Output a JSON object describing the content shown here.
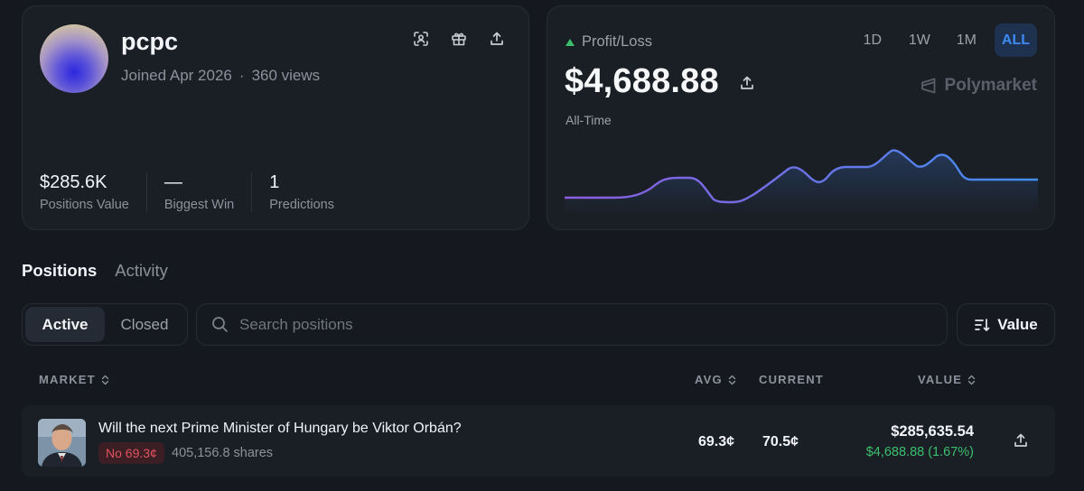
{
  "profile": {
    "username": "pcpc",
    "joined": "Joined Apr 2026",
    "separator": "·",
    "views": "360 views",
    "stats": [
      {
        "value": "$285.6K",
        "label": "Positions Value"
      },
      {
        "value": "—",
        "label": "Biggest Win"
      },
      {
        "value": "1",
        "label": "Predictions"
      }
    ]
  },
  "pnl": {
    "label": "Profit/Loss",
    "value": "$4,688.88",
    "period": "All-Time",
    "timeframes": [
      "1D",
      "1W",
      "1M",
      "ALL"
    ],
    "active_timeframe": "ALL",
    "brand": "Polymarket",
    "accent_color": "#3cbf6d"
  },
  "tabs": {
    "positions": "Positions",
    "activity": "Activity",
    "active": "Positions"
  },
  "filters": {
    "active_label": "Active",
    "closed_label": "Closed",
    "search_placeholder": "Search positions",
    "sort_label": "Value"
  },
  "table": {
    "headers": {
      "market": "MARKET",
      "avg": "AVG",
      "current": "CURRENT",
      "value": "VALUE"
    },
    "rows": [
      {
        "question": "Will the next Prime Minister of Hungary be Viktor Orbán?",
        "outcome": "No 69.3¢",
        "shares": "405,156.8 shares",
        "avg": "69.3¢",
        "current": "70.5¢",
        "value": "$285,635.54",
        "pnl": "$4,688.88 (1.67%)"
      }
    ]
  }
}
